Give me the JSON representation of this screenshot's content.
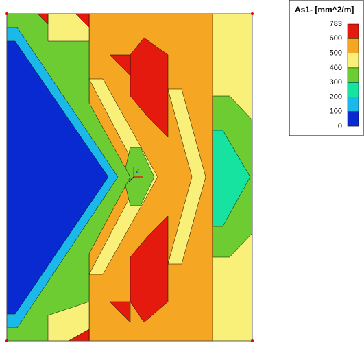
{
  "legend": {
    "title": "As1- [mm^2/m]",
    "labels": [
      "783",
      "600",
      "500",
      "400",
      "300",
      "200",
      "100",
      "0"
    ],
    "colors": [
      "#e51a0e",
      "#f5a623",
      "#f9f07a",
      "#6dcc32",
      "#17e3a0",
      "#1bb8ea",
      "#0a2ad1"
    ]
  },
  "axis_label": "Z"
}
